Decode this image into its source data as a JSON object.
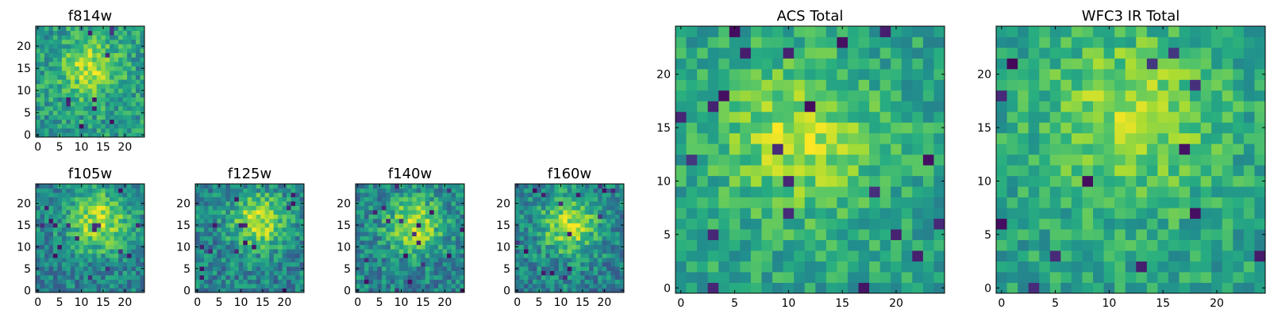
{
  "chart_data": [
    {
      "type": "heatmap",
      "title": "f814w",
      "xticks": [
        "0",
        "5",
        "10",
        "15",
        "20"
      ],
      "yticks": [
        "0",
        "5",
        "10",
        "15",
        "20"
      ],
      "xlim": [
        0,
        25
      ],
      "ylim": [
        0,
        25
      ],
      "grid": false,
      "colormap": "viridis",
      "cx": 12,
      "cy": 15,
      "sigma": 4.5,
      "amp": 0.35,
      "base": 0.55,
      "noise": 0.3,
      "seed": 11
    },
    {
      "type": "heatmap",
      "title": "f105w",
      "xticks": [
        "0",
        "5",
        "10",
        "15",
        "20"
      ],
      "yticks": [
        "0",
        "5",
        "10",
        "15",
        "20"
      ],
      "xlim": [
        0,
        25
      ],
      "ylim": [
        0,
        25
      ],
      "grid": false,
      "colormap": "viridis",
      "cx": 14,
      "cy": 16,
      "sigma": 5.0,
      "amp": 0.45,
      "base": 0.45,
      "noise": 0.3,
      "seed": 23
    },
    {
      "type": "heatmap",
      "title": "f125w",
      "xticks": [
        "0",
        "5",
        "10",
        "15",
        "20"
      ],
      "yticks": [
        "0",
        "5",
        "10",
        "15",
        "20"
      ],
      "xlim": [
        0,
        25
      ],
      "ylim": [
        0,
        25
      ],
      "grid": false,
      "colormap": "viridis",
      "cx": 14,
      "cy": 16,
      "sigma": 4.5,
      "amp": 0.45,
      "base": 0.45,
      "noise": 0.32,
      "seed": 37
    },
    {
      "type": "heatmap",
      "title": "f140w",
      "xticks": [
        "0",
        "5",
        "10",
        "15",
        "20"
      ],
      "yticks": [
        "0",
        "5",
        "10",
        "15",
        "20"
      ],
      "xlim": [
        0,
        25
      ],
      "ylim": [
        0,
        25
      ],
      "grid": false,
      "colormap": "viridis",
      "cx": 13,
      "cy": 15,
      "sigma": 4.5,
      "amp": 0.45,
      "base": 0.45,
      "noise": 0.32,
      "seed": 41
    },
    {
      "type": "heatmap",
      "title": "f160w",
      "xticks": [
        "0",
        "5",
        "10",
        "15",
        "20"
      ],
      "yticks": [
        "0",
        "5",
        "10",
        "15",
        "20"
      ],
      "xlim": [
        0,
        25
      ],
      "ylim": [
        0,
        25
      ],
      "grid": false,
      "colormap": "viridis",
      "cx": 12,
      "cy": 15,
      "sigma": 4.5,
      "amp": 0.45,
      "base": 0.45,
      "noise": 0.32,
      "seed": 53
    },
    {
      "type": "heatmap",
      "title": "ACS Total",
      "xticks": [
        "0",
        "5",
        "10",
        "15",
        "20"
      ],
      "yticks": [
        "0",
        "5",
        "10",
        "15",
        "20"
      ],
      "xlim": [
        0,
        25
      ],
      "ylim": [
        0,
        25
      ],
      "grid": false,
      "colormap": "viridis",
      "cx": 11,
      "cy": 14,
      "sigma": 5.0,
      "amp": 0.3,
      "base": 0.58,
      "noise": 0.25,
      "seed": 67
    },
    {
      "type": "heatmap",
      "title": "WFC3 IR Total",
      "xticks": [
        "0",
        "5",
        "10",
        "15",
        "20"
      ],
      "yticks": [
        "0",
        "5",
        "10",
        "15",
        "20"
      ],
      "xlim": [
        0,
        25
      ],
      "ylim": [
        0,
        25
      ],
      "grid": false,
      "colormap": "viridis",
      "cx": 12,
      "cy": 16,
      "sigma": 5.5,
      "amp": 0.28,
      "base": 0.58,
      "noise": 0.25,
      "seed": 79
    }
  ]
}
